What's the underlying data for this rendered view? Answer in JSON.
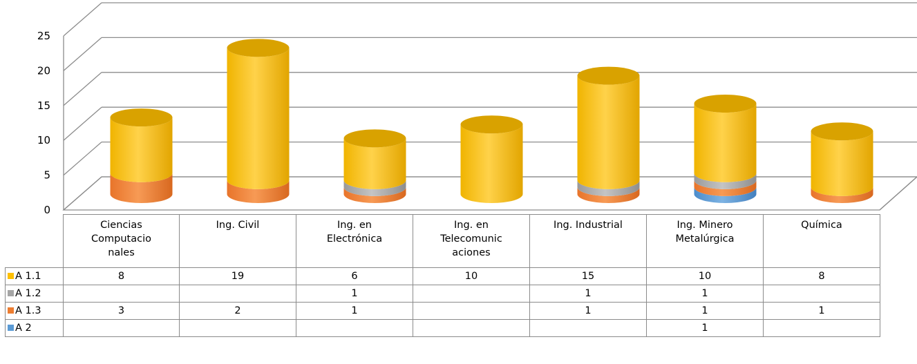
{
  "chart_data": {
    "type": "bar",
    "stacked": true,
    "style": "3d-cylinder",
    "categories": [
      [
        "Ciencias",
        "Computacio",
        "nales"
      ],
      [
        "Ing. Civil"
      ],
      [
        "Ing. en",
        "Electrónica"
      ],
      [
        "Ing. en",
        "Telecomunic",
        "aciones"
      ],
      [
        "Ing. Industrial"
      ],
      [
        "Ing. Minero",
        "Metalúrgica"
      ],
      [
        "Química"
      ]
    ],
    "series": [
      {
        "name": "A 1.1",
        "color": "#FFC000",
        "values": [
          8,
          19,
          6,
          10,
          15,
          10,
          8
        ]
      },
      {
        "name": "A 1.2",
        "color": "#A5A5A5",
        "values": [
          null,
          null,
          1,
          null,
          1,
          1,
          null
        ]
      },
      {
        "name": "A 1.3",
        "color": "#ED7D31",
        "values": [
          3,
          2,
          1,
          null,
          1,
          1,
          1
        ]
      },
      {
        "name": "A 2",
        "color": "#5B9BD5",
        "values": [
          null,
          null,
          null,
          null,
          null,
          1,
          null
        ]
      }
    ],
    "stack_order_bottom_to_top": [
      "A 2",
      "A 1.3",
      "A 1.2",
      "A 1.1"
    ],
    "ylim": [
      0,
      25
    ],
    "yticks": [
      0,
      5,
      10,
      15,
      20,
      25
    ],
    "grid": true,
    "legend": "data-table-below"
  }
}
